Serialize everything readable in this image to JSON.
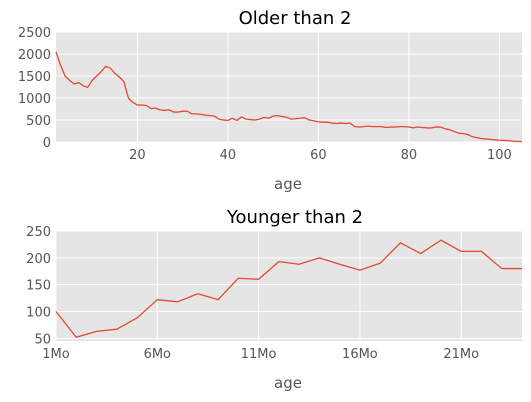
{
  "colors": {
    "panel_bg": "#e5e5e5",
    "line": "#e24a33",
    "grid": "#ffffff",
    "tick_text": "#555555"
  },
  "chart_data": [
    {
      "type": "line",
      "title": "Older than 2",
      "xlabel": "age",
      "ylabel": "",
      "xlim": [
        2,
        105
      ],
      "ylim": [
        0,
        2500
      ],
      "grid": true,
      "xticks": [
        20,
        40,
        60,
        80,
        100
      ],
      "xtick_labels": [
        "20",
        "40",
        "60",
        "80",
        "100"
      ],
      "yticks": [
        0,
        500,
        1000,
        1500,
        2000,
        2500
      ],
      "ytick_labels": [
        "0",
        "500",
        "1000",
        "1500",
        "2000",
        "2500"
      ],
      "series": [
        {
          "x": [
            2,
            3,
            4,
            5,
            6,
            7,
            8,
            9,
            10,
            11,
            12,
            13,
            14,
            15,
            16,
            17,
            18,
            19,
            20,
            21,
            22,
            23,
            24,
            25,
            26,
            27,
            28,
            29,
            30,
            31,
            32,
            33,
            34,
            35,
            36,
            37,
            38,
            39,
            40,
            41,
            42,
            43,
            44,
            45,
            46,
            47,
            48,
            49,
            50,
            51,
            52,
            53,
            54,
            55,
            56,
            57,
            58,
            59,
            60,
            61,
            62,
            63,
            64,
            65,
            66,
            67,
            68,
            69,
            70,
            71,
            72,
            73,
            74,
            75,
            76,
            77,
            78,
            79,
            80,
            81,
            82,
            83,
            84,
            85,
            86,
            87,
            88,
            89,
            90,
            91,
            92,
            93,
            94,
            95,
            96,
            97,
            98,
            99,
            100,
            101,
            102,
            103,
            104,
            105
          ],
          "values": [
            2050,
            1750,
            1500,
            1400,
            1320,
            1350,
            1280,
            1240,
            1400,
            1500,
            1600,
            1720,
            1680,
            1560,
            1480,
            1370,
            1000,
            900,
            840,
            840,
            830,
            760,
            770,
            730,
            720,
            730,
            680,
            680,
            700,
            700,
            640,
            640,
            630,
            610,
            600,
            590,
            520,
            500,
            490,
            540,
            490,
            570,
            520,
            510,
            500,
            520,
            560,
            540,
            590,
            600,
            580,
            560,
            520,
            530,
            540,
            550,
            500,
            480,
            460,
            450,
            450,
            430,
            420,
            430,
            420,
            430,
            350,
            340,
            350,
            360,
            350,
            350,
            350,
            330,
            340,
            340,
            350,
            350,
            340,
            320,
            340,
            330,
            320,
            320,
            340,
            340,
            300,
            280,
            240,
            200,
            190,
            170,
            120,
            100,
            80,
            70,
            60,
            50,
            40,
            35,
            30,
            20,
            15,
            10
          ]
        }
      ]
    },
    {
      "type": "line",
      "title": "Younger than 2",
      "xlabel": "age",
      "ylabel": "",
      "xlim": [
        0,
        23
      ],
      "ylim": [
        45,
        250
      ],
      "grid": true,
      "xticks": [
        0,
        5,
        10,
        15,
        20
      ],
      "xtick_labels": [
        "1Mo",
        "6Mo",
        "11Mo",
        "16Mo",
        "21Mo"
      ],
      "yticks": [
        50,
        100,
        150,
        200,
        250
      ],
      "ytick_labels": [
        "50",
        "100",
        "150",
        "200",
        "250"
      ],
      "series": [
        {
          "x": [
            0,
            1,
            2,
            3,
            4,
            5,
            6,
            7,
            8,
            9,
            10,
            11,
            12,
            13,
            14,
            15,
            16,
            17,
            18,
            19,
            20,
            21,
            22,
            23
          ],
          "values": [
            100,
            52,
            63,
            67,
            88,
            122,
            118,
            133,
            122,
            162,
            160,
            193,
            188,
            200,
            188,
            177,
            190,
            228,
            208,
            233,
            212,
            212,
            180,
            180
          ]
        }
      ]
    }
  ]
}
